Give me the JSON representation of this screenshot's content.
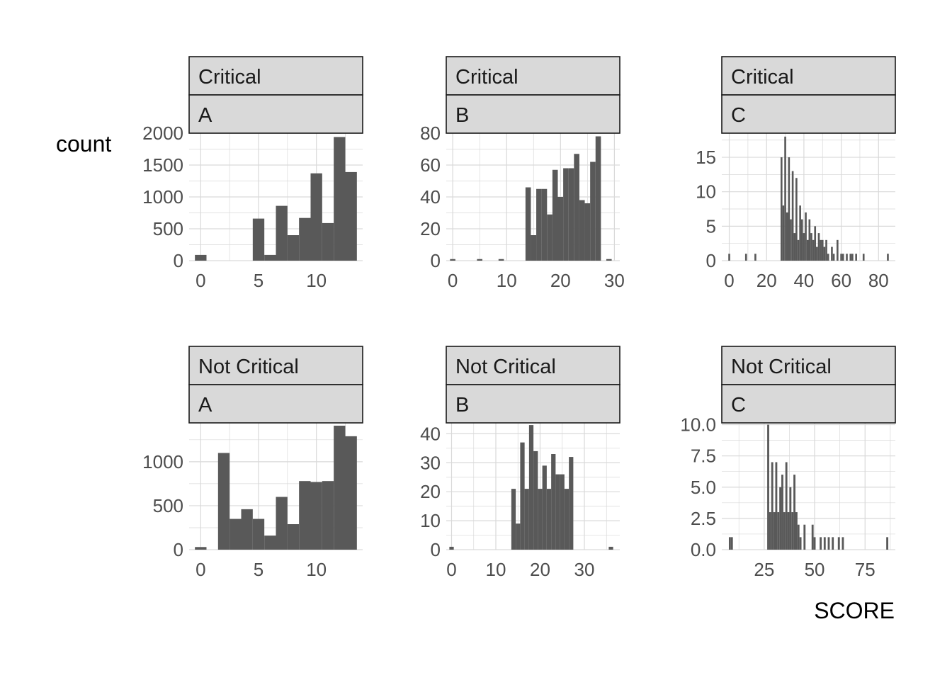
{
  "chart_data": {
    "type": "bar",
    "xlabel": "SCORE",
    "ylabel": "count",
    "colors": {
      "bar": "#595959",
      "strip_fill": "#d9d9d9",
      "strip_border": "#1a1a1a",
      "grid": "#d9d9d9"
    },
    "grid": true,
    "panels": [
      {
        "strip": [
          "Critical",
          "A"
        ],
        "xlim": [
          -1,
          14
        ],
        "ylim": [
          0,
          2000
        ],
        "xticks": [
          0,
          5,
          10
        ],
        "xtick_labels": [
          "0",
          "5",
          "10"
        ],
        "yticks": [
          0,
          500,
          1000,
          1500,
          2000
        ],
        "ytick_labels": [
          "0",
          "500",
          "1000",
          "1500",
          "2000"
        ],
        "bin_width": 1,
        "bins": [
          [
            0,
            90
          ],
          [
            5,
            660
          ],
          [
            6,
            90
          ],
          [
            7,
            860
          ],
          [
            8,
            400
          ],
          [
            9,
            670
          ],
          [
            10,
            1370
          ],
          [
            11,
            590
          ],
          [
            12,
            1940
          ],
          [
            13,
            1390
          ]
        ]
      },
      {
        "strip": [
          "Critical",
          "B"
        ],
        "xlim": [
          -1.2,
          31
        ],
        "ylim": [
          0,
          80
        ],
        "xticks": [
          0,
          10,
          20,
          30
        ],
        "xtick_labels": [
          "0",
          "10",
          "20",
          "30"
        ],
        "yticks": [
          0,
          20,
          40,
          60,
          80
        ],
        "ytick_labels": [
          "0",
          "20",
          "40",
          "60",
          "80"
        ],
        "bin_width": 1,
        "bins": [
          [
            0,
            1
          ],
          [
            5,
            1
          ],
          [
            9,
            1
          ],
          [
            14,
            46
          ],
          [
            15,
            16
          ],
          [
            16,
            45
          ],
          [
            17,
            45
          ],
          [
            18,
            29
          ],
          [
            19,
            57
          ],
          [
            20,
            40
          ],
          [
            21,
            58
          ],
          [
            22,
            58
          ],
          [
            23,
            67
          ],
          [
            24,
            38
          ],
          [
            25,
            36
          ],
          [
            26,
            62
          ],
          [
            27,
            78
          ],
          [
            29,
            1
          ]
        ]
      },
      {
        "strip": [
          "Critical",
          "C"
        ],
        "xlim": [
          -4,
          89
        ],
        "ylim": [
          0,
          18.5
        ],
        "xticks": [
          0,
          20,
          40,
          60,
          80
        ],
        "xtick_labels": [
          "0",
          "20",
          "40",
          "60",
          "80"
        ],
        "yticks": [
          0,
          5,
          10,
          15
        ],
        "ytick_labels": [
          "0",
          "5",
          "10",
          "15"
        ],
        "bin_width": 1,
        "bins": [
          [
            0,
            1
          ],
          [
            9,
            1
          ],
          [
            14,
            1
          ],
          [
            28,
            15
          ],
          [
            29,
            8
          ],
          [
            30,
            18
          ],
          [
            31,
            7
          ],
          [
            32,
            15
          ],
          [
            33,
            6
          ],
          [
            34,
            13
          ],
          [
            35,
            4
          ],
          [
            36,
            12
          ],
          [
            37,
            3
          ],
          [
            38,
            8
          ],
          [
            39,
            6
          ],
          [
            40,
            4
          ],
          [
            41,
            7
          ],
          [
            42,
            3
          ],
          [
            43,
            6
          ],
          [
            44,
            4
          ],
          [
            45,
            3
          ],
          [
            46,
            5
          ],
          [
            47,
            2
          ],
          [
            48,
            4
          ],
          [
            49,
            3
          ],
          [
            50,
            3
          ],
          [
            51,
            2
          ],
          [
            52,
            3
          ],
          [
            53,
            1
          ],
          [
            55,
            2
          ],
          [
            56,
            1
          ],
          [
            58,
            3
          ],
          [
            60,
            1
          ],
          [
            61,
            1
          ],
          [
            63,
            1
          ],
          [
            65,
            1
          ],
          [
            66,
            1
          ],
          [
            68,
            1
          ],
          [
            72,
            1
          ],
          [
            85,
            1
          ]
        ]
      },
      {
        "strip": [
          "Not Critical",
          "A"
        ],
        "xlim": [
          -1,
          14
        ],
        "ylim": [
          0,
          1450
        ],
        "xticks": [
          0,
          5,
          10
        ],
        "xtick_labels": [
          "0",
          "5",
          "10"
        ],
        "yticks": [
          0,
          500,
          1000
        ],
        "ytick_labels": [
          "0",
          "500",
          "1000"
        ],
        "bin_width": 1,
        "bins": [
          [
            0,
            30
          ],
          [
            2,
            1100
          ],
          [
            3,
            350
          ],
          [
            4,
            460
          ],
          [
            5,
            350
          ],
          [
            6,
            160
          ],
          [
            7,
            600
          ],
          [
            8,
            290
          ],
          [
            9,
            780
          ],
          [
            10,
            770
          ],
          [
            11,
            780
          ],
          [
            12,
            1410
          ],
          [
            13,
            1290
          ]
        ]
      },
      {
        "strip": [
          "Not Critical",
          "B"
        ],
        "xlim": [
          -1.2,
          38
        ],
        "ylim": [
          0,
          44
        ],
        "xticks": [
          0,
          10,
          20,
          30
        ],
        "xtick_labels": [
          "0",
          "10",
          "20",
          "30"
        ],
        "yticks": [
          0,
          10,
          20,
          30,
          40
        ],
        "ytick_labels": [
          "0",
          "10",
          "20",
          "30",
          "40"
        ],
        "bin_width": 1,
        "bins": [
          [
            0,
            1
          ],
          [
            14,
            21
          ],
          [
            15,
            9
          ],
          [
            16,
            37
          ],
          [
            17,
            21
          ],
          [
            18,
            43
          ],
          [
            19,
            34
          ],
          [
            20,
            21
          ],
          [
            21,
            29
          ],
          [
            22,
            21
          ],
          [
            23,
            33
          ],
          [
            24,
            26
          ],
          [
            25,
            26
          ],
          [
            26,
            21
          ],
          [
            27,
            32
          ],
          [
            36,
            1
          ]
        ]
      },
      {
        "strip": [
          "Not Critical",
          "C"
        ],
        "xlim": [
          4,
          90
        ],
        "ylim": [
          0,
          10.2
        ],
        "xticks": [
          25,
          50,
          75
        ],
        "xtick_labels": [
          "25",
          "50",
          "75"
        ],
        "yticks": [
          0,
          2.5,
          5,
          7.5,
          10
        ],
        "ytick_labels": [
          "0.0",
          "2.5",
          "5.0",
          "7.5",
          "10.0"
        ],
        "bin_width": 1,
        "bins": [
          [
            8,
            1
          ],
          [
            9,
            1
          ],
          [
            27,
            10
          ],
          [
            28,
            3
          ],
          [
            29,
            7
          ],
          [
            30,
            3
          ],
          [
            31,
            7
          ],
          [
            32,
            3
          ],
          [
            33,
            5
          ],
          [
            34,
            6
          ],
          [
            35,
            3
          ],
          [
            36,
            7
          ],
          [
            37,
            3
          ],
          [
            38,
            5
          ],
          [
            39,
            3
          ],
          [
            40,
            6
          ],
          [
            41,
            3
          ],
          [
            42,
            2
          ],
          [
            43,
            1
          ],
          [
            45,
            2
          ],
          [
            49,
            2
          ],
          [
            50,
            1
          ],
          [
            53,
            1
          ],
          [
            55,
            1
          ],
          [
            57,
            1
          ],
          [
            59,
            1
          ],
          [
            62,
            1
          ],
          [
            64,
            1
          ],
          [
            86,
            1
          ]
        ]
      }
    ]
  }
}
